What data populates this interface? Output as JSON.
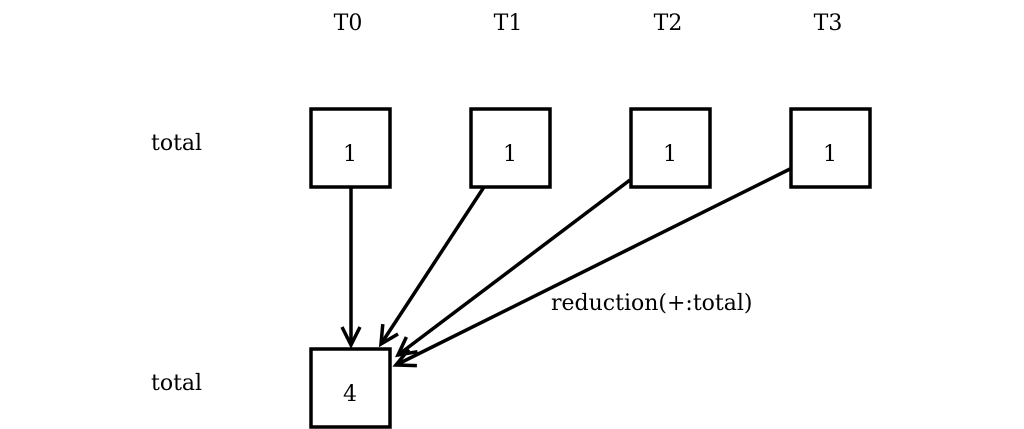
{
  "threads": [
    "T0",
    "T1",
    "T2",
    "T3"
  ],
  "row_label_top": "total",
  "row_label_bottom": "total",
  "partial_values": [
    "1",
    "1",
    "1",
    "1"
  ],
  "result_value": "4",
  "reduction_label": "reduction(+:total)",
  "colors": {
    "stroke": "#000000",
    "background": "#ffffff"
  }
}
